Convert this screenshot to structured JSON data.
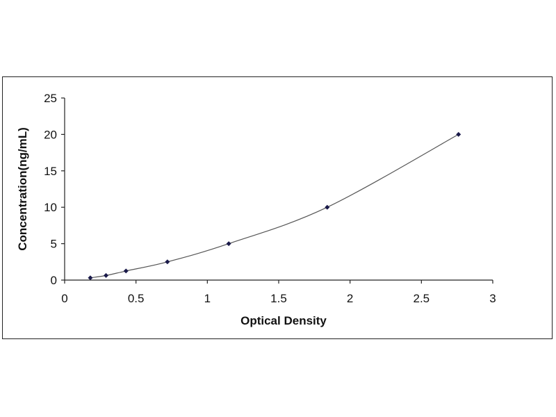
{
  "chart_data": {
    "type": "scatter",
    "title": "",
    "xlabel": "Optical Density",
    "ylabel": "Concentration(ng/mL)",
    "xlim": [
      0,
      3
    ],
    "ylim": [
      0,
      25
    ],
    "xticks": [
      "0",
      "0.5",
      "1",
      "1.5",
      "2",
      "2.5",
      "3"
    ],
    "yticks": [
      "0",
      "5",
      "10",
      "15",
      "20",
      "25"
    ],
    "grid": false,
    "legend": "none",
    "series": [
      {
        "x": [
          0.18,
          0.29,
          0.43,
          0.72,
          1.15,
          1.84,
          2.76
        ],
        "y": [
          0.31,
          0.63,
          1.25,
          2.5,
          5,
          10,
          20
        ],
        "marker": "diamond",
        "fit_line": "smooth"
      }
    ],
    "colors": {
      "marker": "#1a1a4a",
      "line": "#555555",
      "axis": "#222222"
    }
  }
}
